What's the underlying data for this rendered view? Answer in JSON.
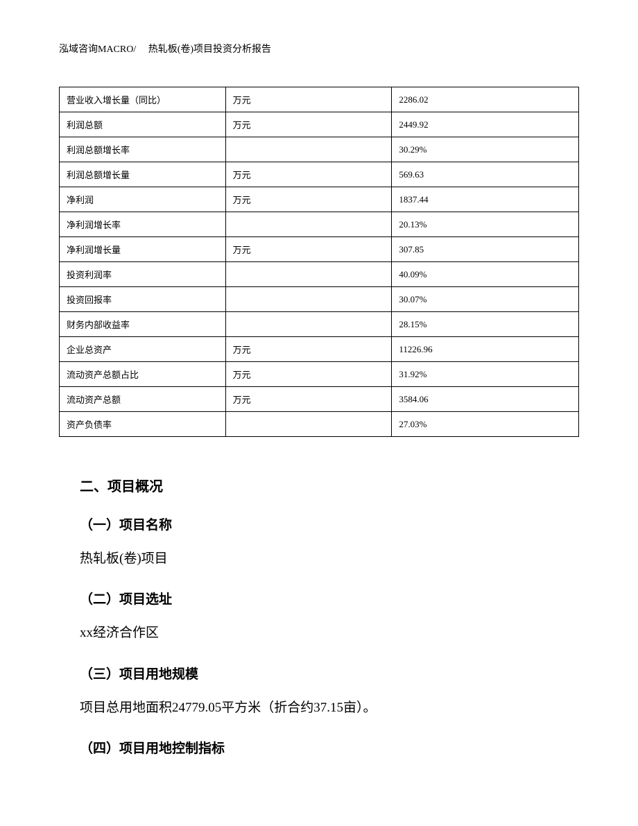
{
  "header": {
    "text": "泓域咨询MACRO/　 热轧板(卷)项目投资分析报告"
  },
  "table": {
    "rows": [
      {
        "label": "营业收入增长量（同比）",
        "unit": "万元",
        "value": "2286.02"
      },
      {
        "label": "利润总额",
        "unit": "万元",
        "value": "2449.92"
      },
      {
        "label": "利润总额增长率",
        "unit": "",
        "value": "30.29%"
      },
      {
        "label": "利润总额增长量",
        "unit": "万元",
        "value": "569.63"
      },
      {
        "label": "净利润",
        "unit": "万元",
        "value": "1837.44"
      },
      {
        "label": "净利润增长率",
        "unit": "",
        "value": "20.13%"
      },
      {
        "label": "净利润增长量",
        "unit": "万元",
        "value": "307.85"
      },
      {
        "label": "投资利润率",
        "unit": "",
        "value": "40.09%"
      },
      {
        "label": "投资回报率",
        "unit": "",
        "value": "30.07%"
      },
      {
        "label": "财务内部收益率",
        "unit": "",
        "value": "28.15%"
      },
      {
        "label": "企业总资产",
        "unit": "万元",
        "value": "11226.96"
      },
      {
        "label": "流动资产总额占比",
        "unit": "万元",
        "value": "31.92%"
      },
      {
        "label": "流动资产总额",
        "unit": "万元",
        "value": "3584.06"
      },
      {
        "label": "资产负债率",
        "unit": "",
        "value": "27.03%"
      }
    ]
  },
  "content": {
    "section_title": "二、项目概况",
    "sub1_title": "（一）项目名称",
    "sub1_text": "热轧板(卷)项目",
    "sub2_title": "（二）项目选址",
    "sub2_text": "xx经济合作区",
    "sub3_title": "（三）项目用地规模",
    "sub3_text": "项目总用地面积24779.05平方米（折合约37.15亩）。",
    "sub4_title": "（四）项目用地控制指标"
  }
}
